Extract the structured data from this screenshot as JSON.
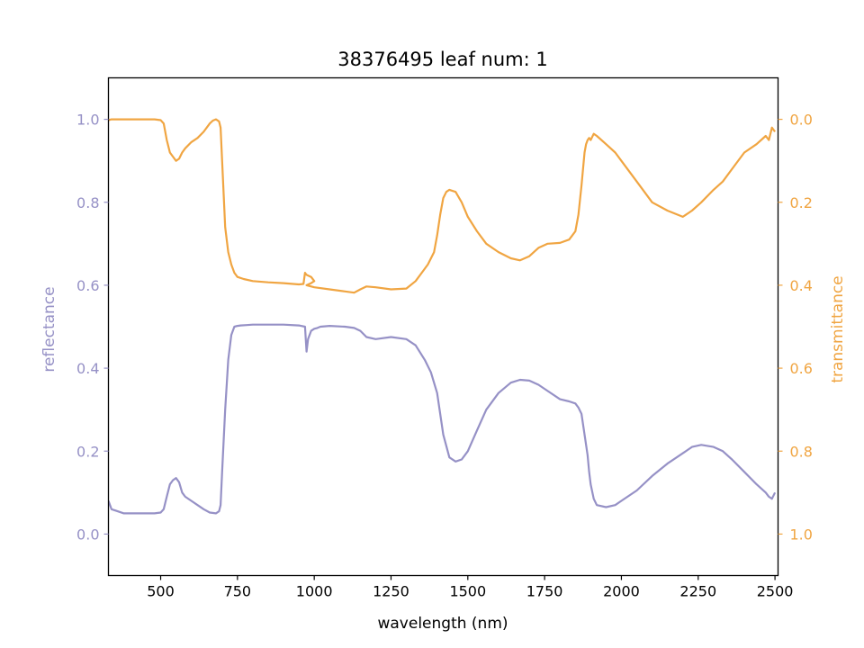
{
  "chart_data": {
    "type": "line",
    "title": "38376495 leaf num: 1",
    "xlabel": "wavelength (nm)",
    "ylabel": "reflectance",
    "y2label": "transmittance",
    "xlim": [
      330,
      2510
    ],
    "ylim": [
      -0.1,
      1.1
    ],
    "y2lim": [
      1.1,
      -0.1
    ],
    "xticks": [
      "500",
      "750",
      "1000",
      "1250",
      "1500",
      "1750",
      "2000",
      "2250",
      "2500"
    ],
    "yticks": [
      "0.0",
      "0.2",
      "0.4",
      "0.6",
      "0.8",
      "1.0"
    ],
    "y2ticks": [
      "0.0",
      "0.2",
      "0.4",
      "0.6",
      "0.8",
      "1.0"
    ],
    "grid": false,
    "colors": {
      "reflectance": "#9691c6",
      "transmittance": "#f0a542"
    },
    "series": [
      {
        "axis": "left",
        "color": "#9691c6",
        "x": [
          330,
          340,
          360,
          380,
          400,
          420,
          450,
          480,
          500,
          510,
          520,
          530,
          540,
          550,
          560,
          570,
          580,
          600,
          620,
          640,
          660,
          680,
          690,
          695,
          700,
          710,
          720,
          730,
          740,
          750,
          760,
          780,
          800,
          850,
          900,
          950,
          970,
          975,
          980,
          990,
          1000,
          1010,
          1020,
          1050,
          1100,
          1130,
          1150,
          1170,
          1200,
          1250,
          1300,
          1330,
          1360,
          1380,
          1400,
          1420,
          1440,
          1460,
          1480,
          1500,
          1530,
          1560,
          1600,
          1640,
          1670,
          1700,
          1730,
          1760,
          1800,
          1830,
          1850,
          1860,
          1870,
          1880,
          1890,
          1895,
          1900,
          1910,
          1920,
          1950,
          1980,
          2000,
          2050,
          2100,
          2150,
          2200,
          2230,
          2260,
          2300,
          2330,
          2360,
          2400,
          2440,
          2470,
          2480,
          2490,
          2500
        ],
        "y": [
          0.08,
          0.06,
          0.055,
          0.05,
          0.05,
          0.05,
          0.05,
          0.05,
          0.052,
          0.06,
          0.09,
          0.12,
          0.13,
          0.135,
          0.125,
          0.1,
          0.09,
          0.08,
          0.07,
          0.06,
          0.052,
          0.05,
          0.055,
          0.07,
          0.15,
          0.3,
          0.42,
          0.48,
          0.5,
          0.502,
          0.503,
          0.504,
          0.505,
          0.505,
          0.505,
          0.503,
          0.5,
          0.44,
          0.47,
          0.49,
          0.495,
          0.497,
          0.5,
          0.502,
          0.5,
          0.497,
          0.49,
          0.475,
          0.47,
          0.475,
          0.47,
          0.455,
          0.42,
          0.39,
          0.34,
          0.24,
          0.185,
          0.175,
          0.18,
          0.2,
          0.25,
          0.3,
          0.34,
          0.365,
          0.372,
          0.37,
          0.36,
          0.345,
          0.325,
          0.32,
          0.315,
          0.305,
          0.29,
          0.24,
          0.19,
          0.15,
          0.12,
          0.085,
          0.07,
          0.065,
          0.07,
          0.08,
          0.105,
          0.14,
          0.17,
          0.195,
          0.21,
          0.215,
          0.21,
          0.2,
          0.18,
          0.15,
          0.12,
          0.1,
          0.09,
          0.085,
          0.1
        ]
      },
      {
        "axis": "right",
        "color": "#f0a542",
        "x": [
          330,
          340,
          360,
          380,
          400,
          420,
          450,
          480,
          500,
          510,
          520,
          530,
          540,
          550,
          560,
          570,
          580,
          600,
          620,
          640,
          660,
          670,
          680,
          690,
          695,
          700,
          710,
          720,
          730,
          740,
          750,
          770,
          800,
          850,
          900,
          950,
          965,
          970,
          975,
          990,
          1000,
          990,
          975,
          1000,
          1050,
          1100,
          1130,
          1150,
          1170,
          1200,
          1250,
          1300,
          1330,
          1350,
          1370,
          1390,
          1400,
          1410,
          1420,
          1430,
          1440,
          1460,
          1480,
          1500,
          1530,
          1560,
          1600,
          1640,
          1670,
          1700,
          1730,
          1760,
          1800,
          1830,
          1850,
          1860,
          1870,
          1880,
          1885,
          1890,
          1895,
          1900,
          1910,
          1920,
          1950,
          1980,
          2000,
          2050,
          2100,
          2150,
          2200,
          2230,
          2260,
          2300,
          2330,
          2360,
          2400,
          2440,
          2470,
          2480,
          2490,
          2500
        ],
        "y": [
          0.002,
          0.0,
          0.0,
          0.0,
          0.0,
          0.0,
          0.0,
          0.0,
          0.002,
          0.01,
          0.05,
          0.08,
          0.09,
          0.1,
          0.095,
          0.08,
          0.07,
          0.055,
          0.045,
          0.03,
          0.01,
          0.003,
          0.0,
          0.005,
          0.02,
          0.1,
          0.26,
          0.32,
          0.35,
          0.37,
          0.38,
          0.385,
          0.39,
          0.393,
          0.395,
          0.398,
          0.397,
          0.37,
          0.375,
          0.38,
          0.39,
          0.395,
          0.4,
          0.405,
          0.41,
          0.415,
          0.418,
          0.41,
          0.403,
          0.405,
          0.41,
          0.408,
          0.39,
          0.37,
          0.35,
          0.32,
          0.28,
          0.23,
          0.19,
          0.175,
          0.17,
          0.175,
          0.2,
          0.235,
          0.27,
          0.3,
          0.32,
          0.335,
          0.34,
          0.33,
          0.31,
          0.3,
          0.298,
          0.29,
          0.27,
          0.23,
          0.16,
          0.08,
          0.06,
          0.05,
          0.045,
          0.05,
          0.035,
          0.04,
          0.06,
          0.08,
          0.1,
          0.15,
          0.2,
          0.22,
          0.235,
          0.22,
          0.2,
          0.17,
          0.15,
          0.12,
          0.08,
          0.06,
          0.04,
          0.05,
          0.02,
          0.03
        ]
      }
    ]
  }
}
